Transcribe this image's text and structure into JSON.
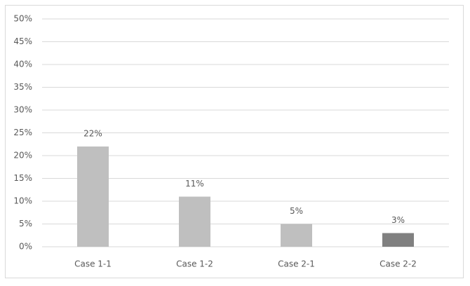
{
  "chart_data": {
    "type": "bar",
    "categories": [
      "Case 1-1",
      "Case 1-2",
      "Case 2-1",
      "Case 2-2"
    ],
    "values": [
      22,
      11,
      5,
      3
    ],
    "value_labels": [
      "22%",
      "11%",
      "5%",
      "3%"
    ],
    "colors": [
      "#bfbfbf",
      "#bfbfbf",
      "#bfbfbf",
      "#808080"
    ],
    "ylim": [
      0,
      50
    ],
    "yticks": [
      {
        "value": 0,
        "label": "0%"
      },
      {
        "value": 5,
        "label": "5%"
      },
      {
        "value": 10,
        "label": "10%"
      },
      {
        "value": 15,
        "label": "15%"
      },
      {
        "value": 20,
        "label": "20%"
      },
      {
        "value": 25,
        "label": "25%"
      },
      {
        "value": 30,
        "label": "30%"
      },
      {
        "value": 35,
        "label": "35%"
      },
      {
        "value": 40,
        "label": "40%"
      },
      {
        "value": 45,
        "label": "45%"
      },
      {
        "value": 50,
        "label": "50%"
      }
    ],
    "grid": true
  }
}
